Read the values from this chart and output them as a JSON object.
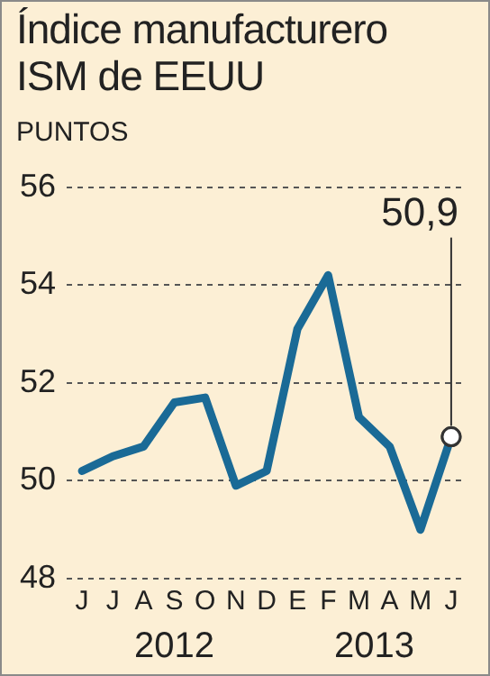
{
  "chart_data": {
    "type": "line",
    "title": "Índice manufacturero ISM de EEUU",
    "ylabel": "PUNTOS",
    "categories": [
      "J",
      "J",
      "A",
      "S",
      "O",
      "N",
      "D",
      "E",
      "F",
      "M",
      "A",
      "M",
      "J"
    ],
    "series": [
      {
        "color": "#1a6a96",
        "values": [
          50.2,
          50.5,
          50.7,
          51.6,
          51.7,
          49.9,
          50.2,
          53.1,
          54.2,
          51.3,
          50.7,
          49.0,
          50.9
        ],
        "value_labels": [
          null,
          null,
          null,
          null,
          null,
          null,
          null,
          null,
          null,
          null,
          null,
          null,
          "50,9"
        ]
      }
    ],
    "ylim": [
      48,
      56
    ],
    "yticks": [
      48,
      50,
      52,
      54,
      56
    ],
    "grid": "y",
    "marker": "none",
    "line_style": "solid",
    "annotations": [
      "2012",
      "2013"
    ]
  }
}
